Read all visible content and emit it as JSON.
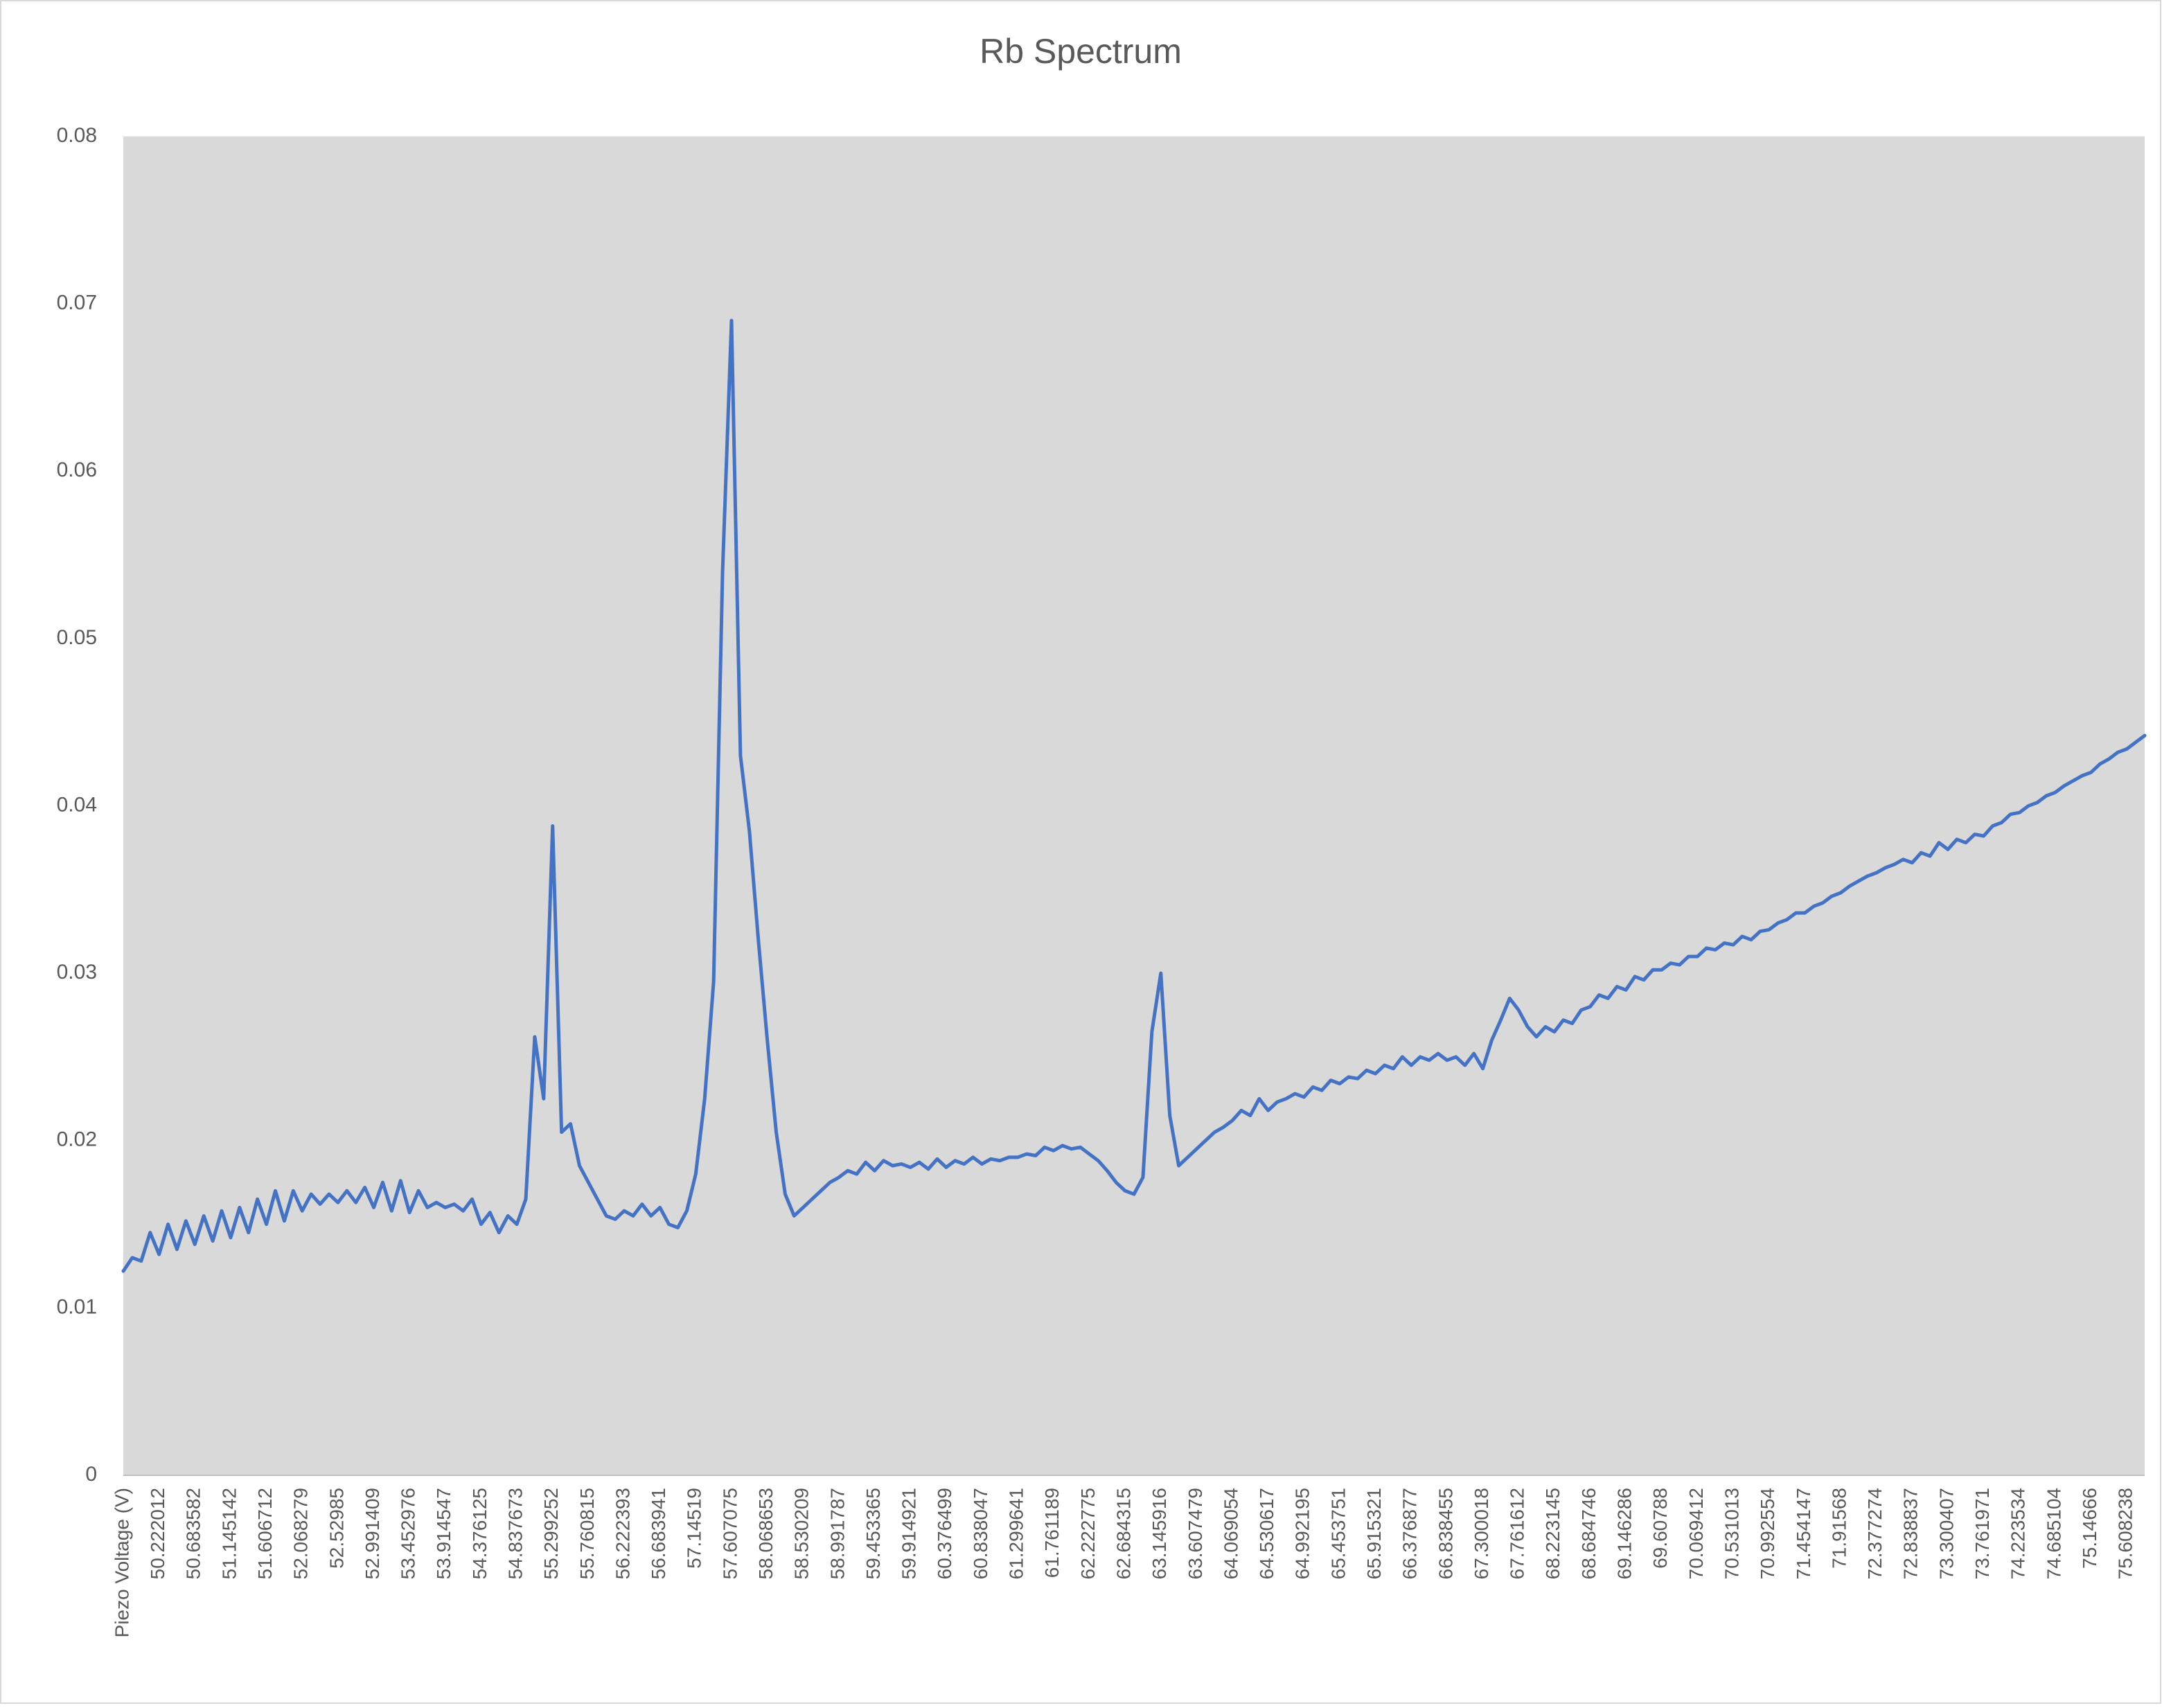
{
  "chart_data": {
    "type": "line",
    "title": "Rb Spectrum",
    "color": "#4472c4",
    "grid": false,
    "categories": [
      "Piezo Voltage (V)",
      null,
      null,
      null,
      "50.222012",
      null,
      null,
      null,
      "50.683582",
      null,
      null,
      null,
      "51.145142",
      null,
      null,
      null,
      "51.606712",
      null,
      null,
      null,
      "52.068279",
      null,
      null,
      null,
      "52.52985",
      null,
      null,
      null,
      "52.991409",
      null,
      null,
      null,
      "53.452976",
      null,
      null,
      null,
      "53.914547",
      null,
      null,
      null,
      "54.376125",
      null,
      null,
      null,
      "54.837673",
      null,
      null,
      null,
      "55.299252",
      null,
      null,
      null,
      "55.760815",
      null,
      null,
      null,
      "56.222393",
      null,
      null,
      null,
      "56.683941",
      null,
      null,
      null,
      "57.14519",
      null,
      null,
      null,
      "57.607075",
      null,
      null,
      null,
      "58.068653",
      null,
      null,
      null,
      "58.530209",
      null,
      null,
      null,
      "58.991787",
      null,
      null,
      null,
      "59.453365",
      null,
      null,
      null,
      "59.914921",
      null,
      null,
      null,
      "60.376499",
      null,
      null,
      null,
      "60.838047",
      null,
      null,
      null,
      "61.299641",
      null,
      null,
      null,
      "61.761189",
      null,
      null,
      null,
      "62.222775",
      null,
      null,
      null,
      "62.684315",
      null,
      null,
      null,
      "63.145916",
      null,
      null,
      null,
      "63.607479",
      null,
      null,
      null,
      "64.069054",
      null,
      null,
      null,
      "64.530617",
      null,
      null,
      null,
      "64.992195",
      null,
      null,
      null,
      "65.453751",
      null,
      null,
      null,
      "65.915321",
      null,
      null,
      null,
      "66.376877",
      null,
      null,
      null,
      "66.838455",
      null,
      null,
      null,
      "67.300018",
      null,
      null,
      null,
      "67.761612",
      null,
      null,
      null,
      "68.223145",
      null,
      null,
      null,
      "68.684746",
      null,
      null,
      null,
      "69.146286",
      null,
      null,
      null,
      "69.60788",
      null,
      null,
      null,
      "70.069412",
      null,
      null,
      null,
      "70.531013",
      null,
      null,
      null,
      "70.992554",
      null,
      null,
      null,
      "71.454147",
      null,
      null,
      null,
      "71.91568",
      null,
      null,
      null,
      "72.377274",
      null,
      null,
      null,
      "72.838837",
      null,
      null,
      null,
      "73.300407",
      null,
      null,
      null,
      "73.761971",
      null,
      null,
      null,
      "74.223534",
      null,
      null,
      null,
      "74.685104",
      null,
      null,
      null,
      "75.14666",
      null,
      null,
      null,
      "75.608238",
      null,
      null
    ],
    "values": [
      0.0122,
      0.013,
      0.0128,
      0.0145,
      0.0132,
      0.015,
      0.0135,
      0.0152,
      0.0138,
      0.0155,
      0.014,
      0.0158,
      0.0142,
      0.016,
      0.0145,
      0.0165,
      0.015,
      0.017,
      0.0152,
      0.017,
      0.0158,
      0.0168,
      0.0162,
      0.0168,
      0.0163,
      0.017,
      0.0163,
      0.0172,
      0.016,
      0.0175,
      0.0158,
      0.0176,
      0.0157,
      0.017,
      0.016,
      0.0163,
      0.016,
      0.0162,
      0.0158,
      0.0165,
      0.015,
      0.0157,
      0.0145,
      0.0155,
      0.015,
      0.0165,
      0.0262,
      0.0225,
      0.0388,
      0.0205,
      0.021,
      0.0185,
      0.0175,
      0.0165,
      0.0155,
      0.0153,
      0.0158,
      0.0155,
      0.0162,
      0.0155,
      0.016,
      0.015,
      0.0148,
      0.0158,
      0.018,
      0.0225,
      0.0295,
      0.054,
      0.069,
      0.043,
      0.0385,
      0.032,
      0.026,
      0.0205,
      0.0168,
      0.0155,
      0.016,
      0.0165,
      0.017,
      0.0175,
      0.0178,
      0.0182,
      0.018,
      0.0187,
      0.0182,
      0.0188,
      0.0185,
      0.0186,
      0.0184,
      0.0187,
      0.0183,
      0.0189,
      0.0184,
      0.0188,
      0.0186,
      0.019,
      0.0186,
      0.0189,
      0.0188,
      0.019,
      0.019,
      0.0192,
      0.0191,
      0.0196,
      0.0194,
      0.0197,
      0.0195,
      0.0196,
      0.0192,
      0.0188,
      0.0182,
      0.0175,
      0.017,
      0.0168,
      0.0178,
      0.0265,
      0.03,
      0.0215,
      0.0185,
      0.019,
      0.0195,
      0.02,
      0.0205,
      0.0208,
      0.0212,
      0.0218,
      0.0215,
      0.0225,
      0.0218,
      0.0223,
      0.0225,
      0.0228,
      0.0226,
      0.0232,
      0.023,
      0.0236,
      0.0234,
      0.0238,
      0.0237,
      0.0242,
      0.024,
      0.0245,
      0.0243,
      0.025,
      0.0245,
      0.025,
      0.0248,
      0.0252,
      0.0248,
      0.025,
      0.0245,
      0.0252,
      0.0243,
      0.026,
      0.0272,
      0.0285,
      0.0278,
      0.0268,
      0.0262,
      0.0268,
      0.0265,
      0.0272,
      0.027,
      0.0278,
      0.028,
      0.0287,
      0.0285,
      0.0292,
      0.029,
      0.0298,
      0.0296,
      0.0302,
      0.0302,
      0.0306,
      0.0305,
      0.031,
      0.031,
      0.0315,
      0.0314,
      0.0318,
      0.0317,
      0.0322,
      0.032,
      0.0325,
      0.0326,
      0.033,
      0.0332,
      0.0336,
      0.0336,
      0.034,
      0.0342,
      0.0346,
      0.0348,
      0.0352,
      0.0355,
      0.0358,
      0.036,
      0.0363,
      0.0365,
      0.0368,
      0.0366,
      0.0372,
      0.037,
      0.0378,
      0.0374,
      0.038,
      0.0378,
      0.0383,
      0.0382,
      0.0388,
      0.039,
      0.0395,
      0.0396,
      0.04,
      0.0402,
      0.0406,
      0.0408,
      0.0412,
      0.0415,
      0.0418,
      0.042,
      0.0425,
      0.0428,
      0.0432,
      0.0434,
      0.0438,
      0.0442
    ],
    "ylim": [
      0,
      0.08
    ],
    "yticks": [
      0,
      0.01,
      0.02,
      0.03,
      0.04,
      0.05,
      0.06,
      0.07,
      0.08
    ]
  }
}
